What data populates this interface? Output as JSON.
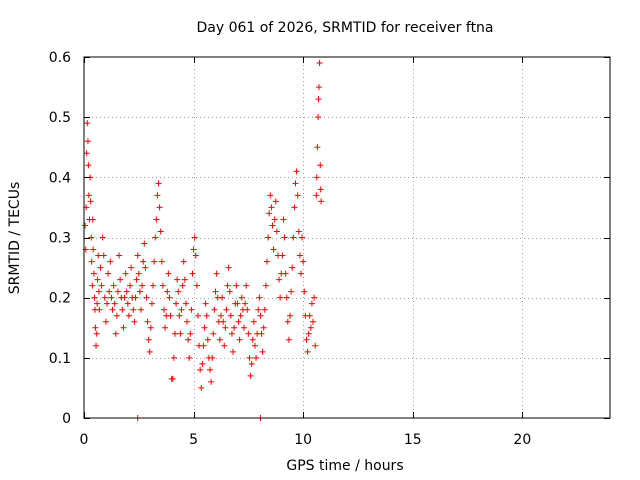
{
  "chart_data": {
    "type": "scatter",
    "title": "Day 061 of 2026, SRMTID for receiver ftna",
    "xlabel": "GPS time / hours",
    "ylabel": "SRMTID / TECUs",
    "xlim": [
      0,
      24
    ],
    "ylim": [
      0,
      0.6
    ],
    "xticks": [
      0,
      5,
      10,
      15,
      20
    ],
    "yticks": [
      0,
      0.1,
      0.2,
      0.3,
      0.4,
      0.5,
      0.6
    ],
    "x_tick_labels": [
      "0",
      "5",
      "10",
      "15",
      "20"
    ],
    "y_tick_labels": [
      "0",
      "0.1",
      "0.2",
      "0.3",
      "0.4",
      "0.5",
      "0.6"
    ],
    "grid": true,
    "marker": "+",
    "series_color": "#ff0000",
    "series": [
      {
        "name": "SRMTID",
        "points": [
          [
            0.05,
            0.32
          ],
          [
            0.08,
            0.28
          ],
          [
            0.1,
            0.35
          ],
          [
            0.12,
            0.44
          ],
          [
            0.15,
            0.49
          ],
          [
            0.18,
            0.46
          ],
          [
            0.2,
            0.42
          ],
          [
            0.22,
            0.37
          ],
          [
            0.25,
            0.33
          ],
          [
            0.28,
            0.4
          ],
          [
            0.3,
            0.36
          ],
          [
            0.33,
            0.3
          ],
          [
            0.35,
            0.26
          ],
          [
            0.38,
            0.22
          ],
          [
            0.4,
            0.33
          ],
          [
            0.42,
            0.28
          ],
          [
            0.45,
            0.24
          ],
          [
            0.48,
            0.2
          ],
          [
            0.5,
            0.18
          ],
          [
            0.52,
            0.15
          ],
          [
            0.55,
            0.12
          ],
          [
            0.58,
            0.14
          ],
          [
            0.6,
            0.19
          ],
          [
            0.62,
            0.23
          ],
          [
            0.65,
            0.27
          ],
          [
            0.68,
            0.21
          ],
          [
            0.7,
            0.18
          ],
          [
            0.75,
            0.25
          ],
          [
            0.8,
            0.22
          ],
          [
            0.85,
            0.3
          ],
          [
            0.9,
            0.27
          ],
          [
            0.95,
            0.2
          ],
          [
            1.0,
            0.16
          ],
          [
            1.05,
            0.19
          ],
          [
            1.1,
            0.24
          ],
          [
            1.15,
            0.21
          ],
          [
            1.2,
            0.26
          ],
          [
            1.25,
            0.2
          ],
          [
            1.3,
            0.18
          ],
          [
            1.35,
            0.22
          ],
          [
            1.4,
            0.19
          ],
          [
            1.45,
            0.14
          ],
          [
            1.5,
            0.17
          ],
          [
            1.55,
            0.21
          ],
          [
            1.6,
            0.27
          ],
          [
            1.65,
            0.23
          ],
          [
            1.7,
            0.2
          ],
          [
            1.75,
            0.18
          ],
          [
            1.8,
            0.15
          ],
          [
            1.85,
            0.2
          ],
          [
            1.9,
            0.24
          ],
          [
            1.95,
            0.21
          ],
          [
            2.0,
            0.19
          ],
          [
            2.05,
            0.17
          ],
          [
            2.1,
            0.22
          ],
          [
            2.15,
            0.25
          ],
          [
            2.2,
            0.2
          ],
          [
            2.25,
            0.18
          ],
          [
            2.3,
            0.16
          ],
          [
            2.35,
            0.2
          ],
          [
            2.4,
            0.23
          ],
          [
            2.45,
            0.27
          ],
          [
            2.5,
            0.24
          ],
          [
            2.55,
            0.21
          ],
          [
            2.6,
            0.18
          ],
          [
            2.65,
            0.22
          ],
          [
            2.7,
            0.26
          ],
          [
            2.75,
            0.29
          ],
          [
            2.8,
            0.25
          ],
          [
            2.85,
            0.2
          ],
          [
            2.9,
            0.16
          ],
          [
            2.95,
            0.13
          ],
          [
            3.0,
            0.11
          ],
          [
            3.05,
            0.15
          ],
          [
            3.1,
            0.19
          ],
          [
            3.15,
            0.22
          ],
          [
            3.2,
            0.26
          ],
          [
            3.25,
            0.3
          ],
          [
            3.3,
            0.33
          ],
          [
            3.35,
            0.37
          ],
          [
            3.4,
            0.39
          ],
          [
            3.45,
            0.35
          ],
          [
            3.5,
            0.31
          ],
          [
            3.55,
            0.26
          ],
          [
            3.6,
            0.22
          ],
          [
            3.65,
            0.18
          ],
          [
            3.7,
            0.15
          ],
          [
            3.75,
            0.17
          ],
          [
            3.8,
            0.21
          ],
          [
            3.85,
            0.24
          ],
          [
            3.9,
            0.2
          ],
          [
            3.95,
            0.17
          ],
          [
            4.0,
            0.065
          ],
          [
            4.05,
            0.065
          ],
          [
            4.1,
            0.1
          ],
          [
            4.15,
            0.14
          ],
          [
            4.2,
            0.19
          ],
          [
            4.25,
            0.23
          ],
          [
            4.3,
            0.21
          ],
          [
            4.35,
            0.17
          ],
          [
            4.4,
            0.14
          ],
          [
            4.45,
            0.18
          ],
          [
            4.5,
            0.22
          ],
          [
            4.55,
            0.26
          ],
          [
            4.6,
            0.23
          ],
          [
            4.65,
            0.19
          ],
          [
            4.7,
            0.16
          ],
          [
            4.75,
            0.13
          ],
          [
            4.8,
            0.1
          ],
          [
            4.85,
            0.14
          ],
          [
            4.9,
            0.18
          ],
          [
            4.95,
            0.24
          ],
          [
            5.0,
            0.28
          ],
          [
            5.05,
            0.3
          ],
          [
            5.1,
            0.27
          ],
          [
            5.15,
            0.22
          ],
          [
            5.2,
            0.17
          ],
          [
            5.25,
            0.12
          ],
          [
            5.3,
            0.08
          ],
          [
            5.35,
            0.05
          ],
          [
            5.4,
            0.09
          ],
          [
            5.45,
            0.12
          ],
          [
            5.5,
            0.15
          ],
          [
            5.55,
            0.19
          ],
          [
            5.6,
            0.17
          ],
          [
            5.65,
            0.13
          ],
          [
            5.7,
            0.1
          ],
          [
            5.75,
            0.08
          ],
          [
            5.8,
            0.06
          ],
          [
            5.85,
            0.1
          ],
          [
            5.9,
            0.14
          ],
          [
            5.95,
            0.18
          ],
          [
            6.0,
            0.21
          ],
          [
            6.05,
            0.24
          ],
          [
            6.1,
            0.2
          ],
          [
            6.15,
            0.16
          ],
          [
            6.2,
            0.13
          ],
          [
            6.25,
            0.17
          ],
          [
            6.3,
            0.2
          ],
          [
            6.35,
            0.16
          ],
          [
            6.4,
            0.12
          ],
          [
            6.45,
            0.15
          ],
          [
            6.5,
            0.18
          ],
          [
            6.55,
            0.22
          ],
          [
            6.6,
            0.25
          ],
          [
            6.65,
            0.21
          ],
          [
            6.7,
            0.17
          ],
          [
            6.75,
            0.14
          ],
          [
            6.8,
            0.11
          ],
          [
            6.85,
            0.15
          ],
          [
            6.9,
            0.19
          ],
          [
            6.95,
            0.22
          ],
          [
            7.0,
            0.19
          ],
          [
            7.05,
            0.16
          ],
          [
            7.1,
            0.13
          ],
          [
            7.15,
            0.17
          ],
          [
            7.2,
            0.2
          ],
          [
            7.25,
            0.18
          ],
          [
            7.3,
            0.15
          ],
          [
            7.35,
            0.19
          ],
          [
            7.4,
            0.22
          ],
          [
            7.45,
            0.18
          ],
          [
            7.5,
            0.14
          ],
          [
            7.55,
            0.1
          ],
          [
            7.6,
            0.07
          ],
          [
            7.65,
            0.09
          ],
          [
            7.7,
            0.13
          ],
          [
            7.75,
            0.16
          ],
          [
            7.8,
            0.12
          ],
          [
            7.85,
            0.1
          ],
          [
            7.9,
            0.14
          ],
          [
            7.95,
            0.18
          ],
          [
            8.0,
            0.2
          ],
          [
            8.05,
            0.17
          ],
          [
            8.1,
            0.14
          ],
          [
            8.15,
            0.11
          ],
          [
            8.2,
            0.15
          ],
          [
            8.25,
            0.18
          ],
          [
            8.3,
            0.22
          ],
          [
            8.35,
            0.26
          ],
          [
            8.4,
            0.3
          ],
          [
            8.45,
            0.34
          ],
          [
            8.5,
            0.37
          ],
          [
            8.55,
            0.35
          ],
          [
            8.6,
            0.32
          ],
          [
            8.65,
            0.28
          ],
          [
            8.7,
            0.33
          ],
          [
            8.75,
            0.36
          ],
          [
            8.8,
            0.31
          ],
          [
            8.85,
            0.27
          ],
          [
            8.9,
            0.23
          ],
          [
            8.95,
            0.2
          ],
          [
            9.0,
            0.24
          ],
          [
            9.05,
            0.27
          ],
          [
            9.1,
            0.33
          ],
          [
            9.15,
            0.3
          ],
          [
            9.2,
            0.24
          ],
          [
            9.25,
            0.2
          ],
          [
            9.3,
            0.16
          ],
          [
            9.35,
            0.13
          ],
          [
            9.4,
            0.17
          ],
          [
            9.45,
            0.21
          ],
          [
            9.5,
            0.25
          ],
          [
            9.55,
            0.3
          ],
          [
            9.6,
            0.35
          ],
          [
            9.65,
            0.39
          ],
          [
            9.7,
            0.41
          ],
          [
            9.75,
            0.37
          ],
          [
            9.8,
            0.31
          ],
          [
            9.85,
            0.27
          ],
          [
            9.9,
            0.24
          ],
          [
            9.95,
            0.3
          ],
          [
            10.0,
            0.26
          ],
          [
            10.05,
            0.21
          ],
          [
            10.1,
            0.17
          ],
          [
            10.15,
            0.13
          ],
          [
            10.2,
            0.11
          ],
          [
            10.25,
            0.14
          ],
          [
            10.3,
            0.17
          ],
          [
            10.35,
            0.15
          ],
          [
            10.4,
            0.19
          ],
          [
            10.45,
            0.16
          ],
          [
            10.5,
            0.2
          ],
          [
            10.55,
            0.12
          ],
          [
            10.6,
            0.37
          ],
          [
            10.62,
            0.4
          ],
          [
            10.65,
            0.45
          ],
          [
            10.68,
            0.5
          ],
          [
            10.7,
            0.53
          ],
          [
            10.72,
            0.55
          ],
          [
            10.75,
            0.59
          ],
          [
            10.78,
            0.42
          ],
          [
            10.8,
            0.38
          ],
          [
            10.82,
            0.36
          ]
        ]
      }
    ],
    "outliers": [
      [
        2.45,
        0.0
      ],
      [
        8.05,
        0.0
      ]
    ]
  }
}
